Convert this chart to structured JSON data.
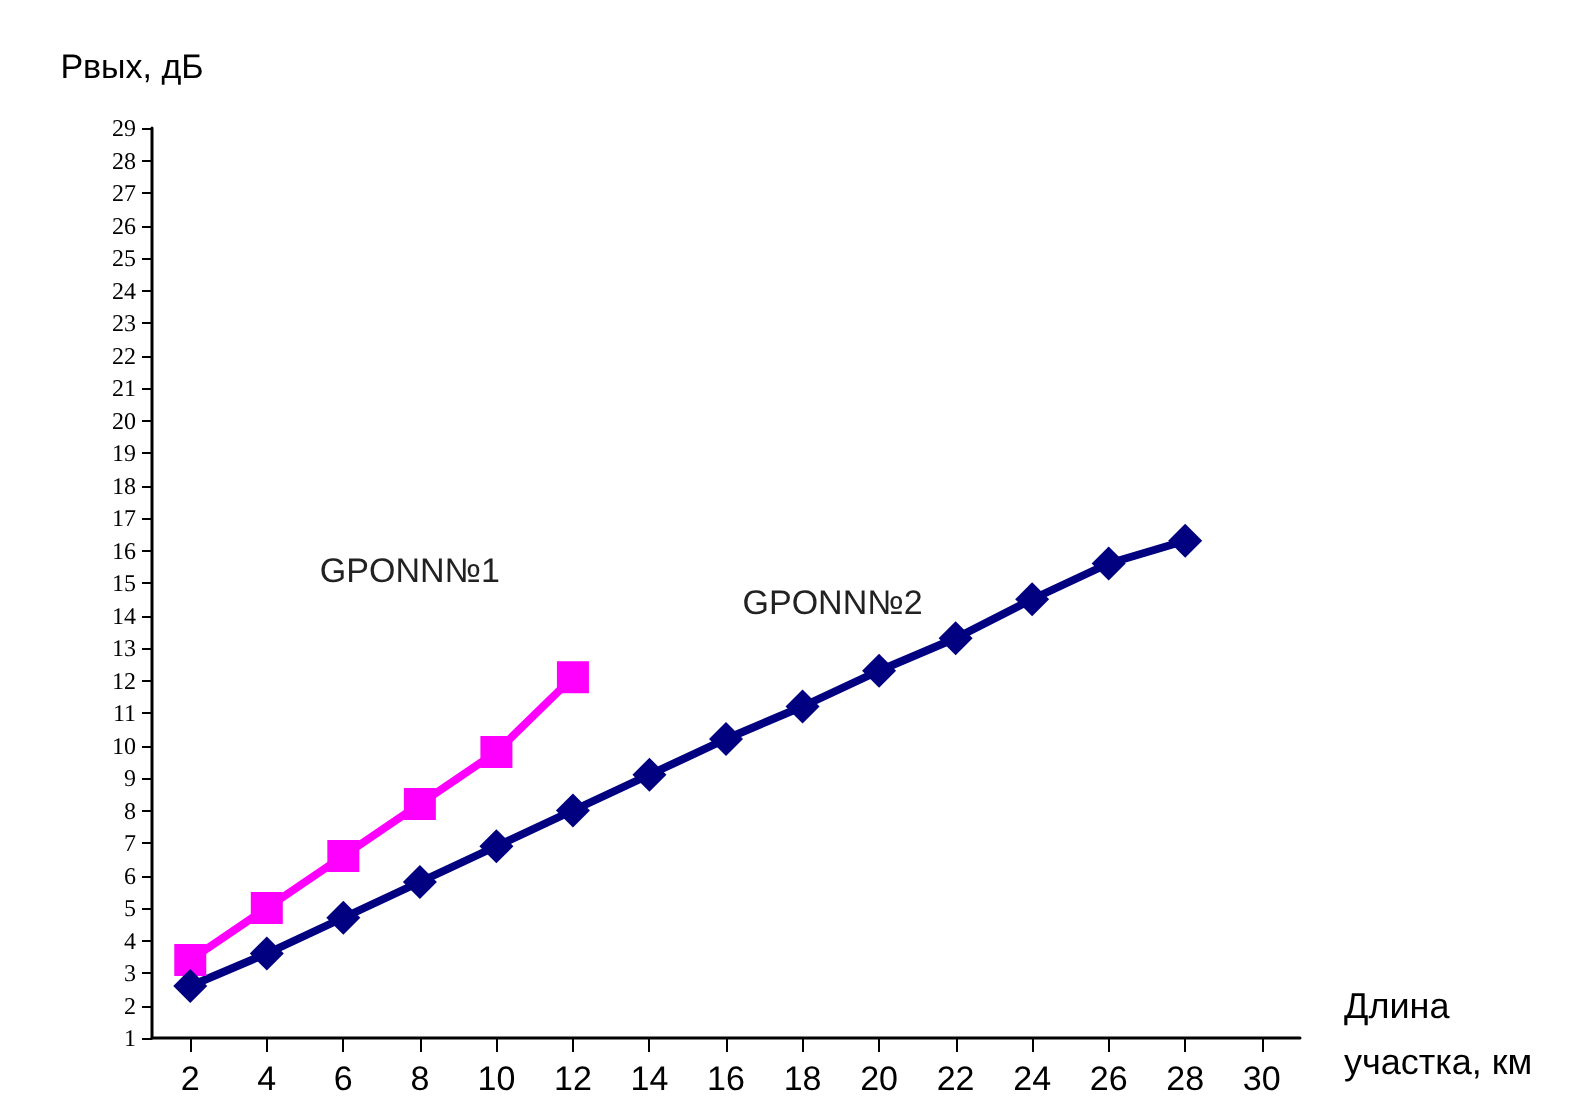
{
  "chart_data": {
    "type": "line",
    "xlabel": "Длина\nучастка, км",
    "ylabel": "Рвых, дБ",
    "xlim": [
      1,
      31
    ],
    "xticks": [
      2,
      4,
      6,
      8,
      10,
      12,
      14,
      16,
      18,
      20,
      22,
      24,
      26,
      28,
      30
    ],
    "ylim": [
      1,
      29
    ],
    "yticks": [
      1,
      2,
      3,
      4,
      5,
      6,
      7,
      8,
      9,
      10,
      11,
      12,
      13,
      14,
      15,
      16,
      17,
      18,
      19,
      20,
      21,
      22,
      23,
      24,
      25,
      26,
      27,
      28,
      29
    ],
    "grid": false,
    "legend": false,
    "line_style": "solid",
    "series": [
      {
        "name": "GPONN№1",
        "color": "#ff00ff",
        "marker": "square",
        "x": [
          2,
          4,
          6,
          8,
          10,
          12
        ],
        "values": [
          3.4,
          5.0,
          6.6,
          8.2,
          9.8,
          12.1
        ]
      },
      {
        "name": "GPONN№2",
        "color": "#000080",
        "marker": "diamond",
        "x": [
          2,
          4,
          6,
          8,
          10,
          12,
          14,
          16,
          18,
          20,
          22,
          24,
          26,
          28
        ],
        "values": [
          2.6,
          3.6,
          4.7,
          5.8,
          6.9,
          8.0,
          9.1,
          10.2,
          11.2,
          12.3,
          13.3,
          14.5,
          15.6,
          16.3
        ]
      }
    ]
  }
}
